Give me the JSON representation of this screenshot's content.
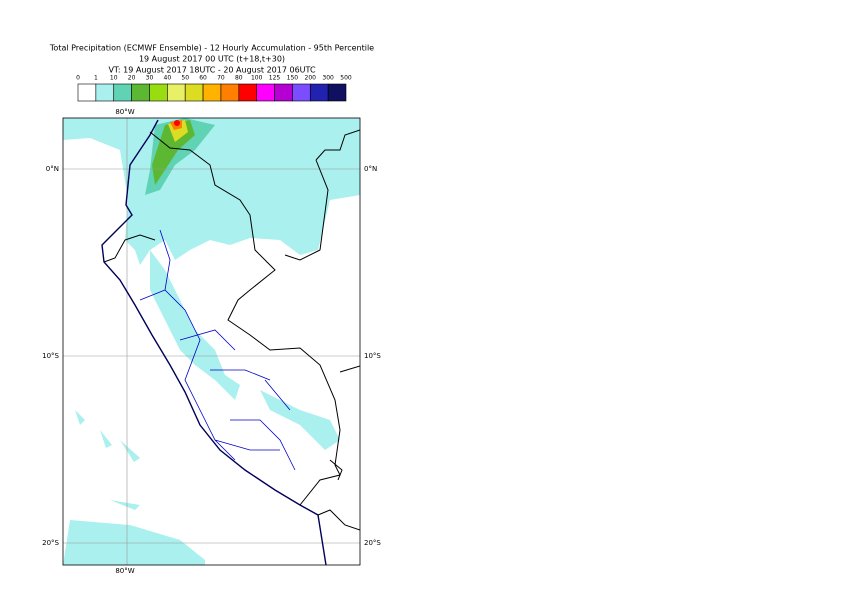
{
  "title": [
    "Total Precipitation (ECMWF Ensemble) - 12 Hourly Accumulation - 95th Percentile",
    "19 August 2017 00 UTC (t+18,t+30)",
    "VT: 19 August 2017 18UTC - 20 August 2017 06UTC"
  ],
  "legend": {
    "labels": [
      "0",
      "1",
      "10",
      "20",
      "30",
      "40",
      "50",
      "60",
      "70",
      "80",
      "100",
      "125",
      "150",
      "200",
      "300",
      "500"
    ],
    "colors": [
      "#ffffff",
      "#aaf0ee",
      "#5fd3b4",
      "#5cb832",
      "#99dd11",
      "#e8f066",
      "#dcdc22",
      "#ffb300",
      "#ff8000",
      "#ff0000",
      "#ff00ff",
      "#b400d2",
      "#7c4dff",
      "#2222b0",
      "#101060"
    ]
  },
  "map": {
    "lon_label": "80°W",
    "lat_labels": [
      "0°N",
      "10°S",
      "20°S"
    ]
  }
}
